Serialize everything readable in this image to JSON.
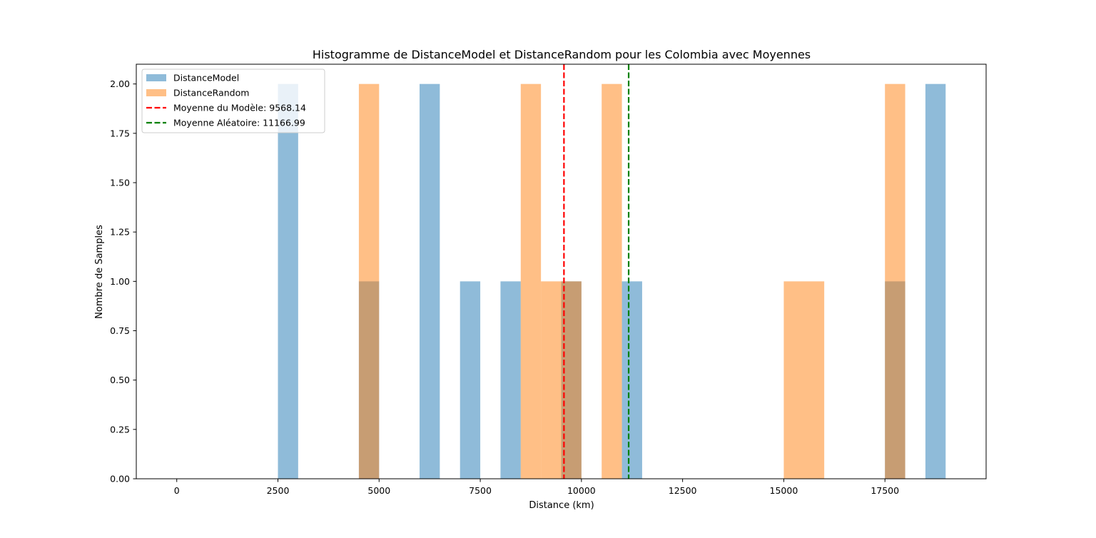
{
  "chart_data": {
    "type": "bar",
    "title": "Histogramme de DistanceModel et DistanceRandom pour les Colombia avec Moyennes",
    "xlabel": "Distance (km)",
    "ylabel": "Nombre de Samples",
    "xlim": [
      -1000,
      20000
    ],
    "ylim": [
      0,
      2.1
    ],
    "x_ticks": [
      0,
      2500,
      5000,
      7500,
      10000,
      12500,
      15000,
      17500
    ],
    "y_ticks": [
      0.0,
      0.25,
      0.5,
      0.75,
      1.0,
      1.25,
      1.5,
      1.75,
      2.0
    ],
    "x_tick_labels": [
      "0",
      "2500",
      "5000",
      "7500",
      "10000",
      "12500",
      "15000",
      "17500"
    ],
    "y_tick_labels": [
      "0.00",
      "0.25",
      "0.50",
      "0.75",
      "1.00",
      "1.25",
      "1.50",
      "1.75",
      "2.00"
    ],
    "grid": false,
    "legend_position": "upper-left",
    "series": [
      {
        "name": "DistanceModel",
        "color": "#1f77b4",
        "alpha": 0.5,
        "bins": [
          {
            "x0": 2500,
            "x1": 3000,
            "count": 2
          },
          {
            "x0": 4500,
            "x1": 5000,
            "count": 1
          },
          {
            "x0": 6000,
            "x1": 6500,
            "count": 2
          },
          {
            "x0": 7000,
            "x1": 7500,
            "count": 1
          },
          {
            "x0": 8000,
            "x1": 8500,
            "count": 1
          },
          {
            "x0": 9500,
            "x1": 10000,
            "count": 1
          },
          {
            "x0": 11000,
            "x1": 11500,
            "count": 1
          },
          {
            "x0": 17500,
            "x1": 18000,
            "count": 1
          },
          {
            "x0": 18500,
            "x1": 19000,
            "count": 2
          }
        ]
      },
      {
        "name": "DistanceRandom",
        "color": "#ff7f0e",
        "alpha": 0.5,
        "bins": [
          {
            "x0": 4500,
            "x1": 5000,
            "count": 2
          },
          {
            "x0": 8500,
            "x1": 9000,
            "count": 2
          },
          {
            "x0": 9000,
            "x1": 10000,
            "count": 1
          },
          {
            "x0": 10500,
            "x1": 11000,
            "count": 2
          },
          {
            "x0": 15000,
            "x1": 16000,
            "count": 1
          },
          {
            "x0": 17500,
            "x1": 18000,
            "count": 2
          }
        ]
      }
    ],
    "mean_lines": [
      {
        "name": "Moyenne du Modèle: 9568.14",
        "value": 9568.14,
        "color": "#ff0000"
      },
      {
        "name": "Moyenne Aléatoire: 11166.99",
        "value": 11166.99,
        "color": "#008000"
      }
    ]
  }
}
